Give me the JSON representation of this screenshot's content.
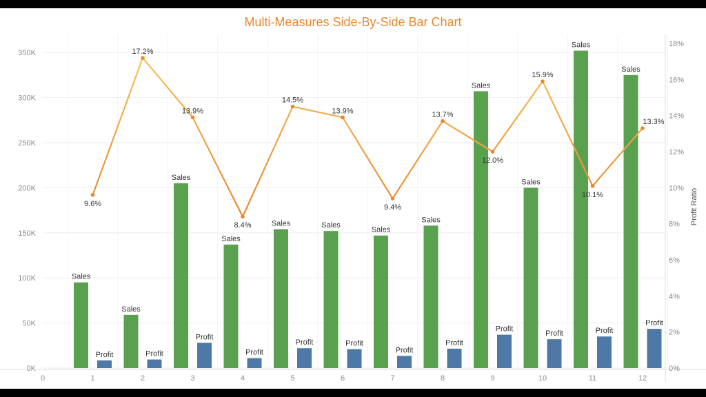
{
  "chart_data": {
    "type": "bar",
    "title": "Multi-Measures Side-By-Side Bar Chart",
    "xlabel": "",
    "ylabel": "",
    "y2label": "Profit Ratio",
    "x_ticks": [
      "0",
      "1",
      "2",
      "3",
      "4",
      "5",
      "6",
      "7",
      "8",
      "9",
      "10",
      "11",
      "12"
    ],
    "categories": [
      "1",
      "2",
      "3",
      "4",
      "5",
      "6",
      "7",
      "8",
      "9",
      "10",
      "11",
      "12"
    ],
    "ylim": [
      0,
      370000
    ],
    "y_ticks": [
      0,
      50000,
      100000,
      150000,
      200000,
      250000,
      300000,
      350000
    ],
    "y_tick_labels": [
      "0K",
      "50K",
      "100K",
      "150K",
      "200K",
      "250K",
      "300K",
      "350K"
    ],
    "y2lim": [
      0,
      0.185
    ],
    "y2_ticks": [
      0,
      0.02,
      0.04,
      0.06,
      0.08,
      0.1,
      0.12,
      0.14,
      0.16,
      0.18
    ],
    "y2_tick_labels": [
      "0%",
      "2%",
      "4%",
      "6%",
      "8%",
      "10%",
      "12%",
      "14%",
      "16%",
      "18%"
    ],
    "grid": true,
    "series": [
      {
        "name": "Sales",
        "color": "#59a14f",
        "values": [
          95000,
          59000,
          205000,
          137000,
          154000,
          152000,
          147000,
          158000,
          307000,
          200000,
          352000,
          325000
        ]
      },
      {
        "name": "Profit",
        "color": "#4e79a7",
        "values": [
          8500,
          9500,
          28000,
          11000,
          22000,
          21000,
          13500,
          21500,
          37000,
          32000,
          35000,
          43500
        ]
      },
      {
        "name": "Profit Ratio",
        "type": "line",
        "axis": "right",
        "color_start": "#e8872e",
        "color_end": "#f7c45e",
        "values": [
          0.096,
          0.172,
          0.139,
          0.084,
          0.145,
          0.139,
          0.094,
          0.137,
          0.12,
          0.159,
          0.101,
          0.133
        ],
        "labels": [
          "9.6%",
          "17.2%",
          "13.9%",
          "8.4%",
          "14.5%",
          "13.9%",
          "9.4%",
          "13.7%",
          "12.0%",
          "15.9%",
          "10.1%",
          "13.3%"
        ]
      }
    ]
  }
}
